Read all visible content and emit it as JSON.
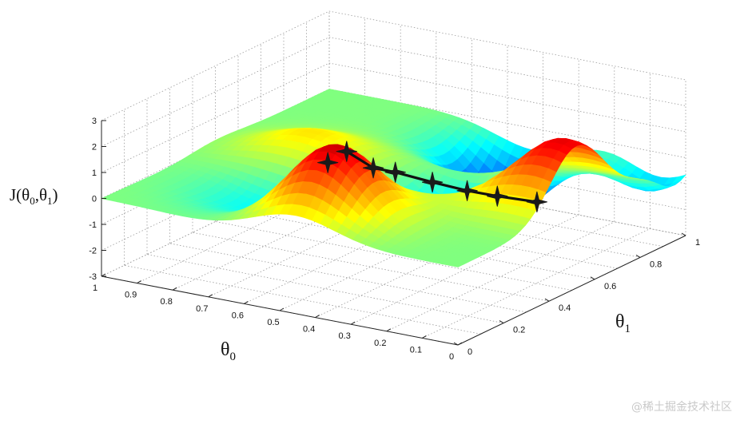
{
  "chart_data": {
    "type": "surface",
    "zlabel_main": "J(θ",
    "zlabel_sub0": "0",
    "zlabel_mid": ",θ",
    "zlabel_sub1": "1",
    "zlabel_end": ")",
    "xlabel_main": "θ",
    "xlabel_sub": "0",
    "ylabel_main": "θ",
    "ylabel_sub": "1",
    "z_ticks": [
      "3",
      "2",
      "1",
      "0",
      "-1",
      "-2",
      "-3"
    ],
    "theta0_ticks": [
      "1",
      "0.9",
      "0.8",
      "0.7",
      "0.6",
      "0.5",
      "0.4",
      "0.3",
      "0.2",
      "0.1",
      "0"
    ],
    "theta1_ticks": [
      "0",
      "0.2",
      "0.4",
      "0.6",
      "0.8",
      "1"
    ],
    "zlim": [
      -3,
      3
    ],
    "theta0_range": [
      0,
      1
    ],
    "theta1_range": [
      0,
      1
    ],
    "grid": true,
    "colormap": "jet",
    "descent_path": [
      {
        "theta0": 0.48,
        "theta1": 0.18,
        "J": 2.0
      },
      {
        "theta0": 0.44,
        "theta1": 0.2,
        "J": 2.45
      },
      {
        "theta0": 0.41,
        "theta1": 0.27,
        "J": 1.6
      },
      {
        "theta0": 0.38,
        "theta1": 0.32,
        "J": 1.3
      },
      {
        "theta0": 0.34,
        "theta1": 0.42,
        "J": 0.6
      },
      {
        "theta0": 0.3,
        "theta1": 0.51,
        "J": 0.0
      },
      {
        "theta0": 0.26,
        "theta1": 0.58,
        "J": -0.4
      },
      {
        "theta0": 0.2,
        "theta1": 0.66,
        "J": -0.8
      }
    ],
    "path_color": "#111111"
  },
  "watermark": "@稀土掘金技术社区"
}
